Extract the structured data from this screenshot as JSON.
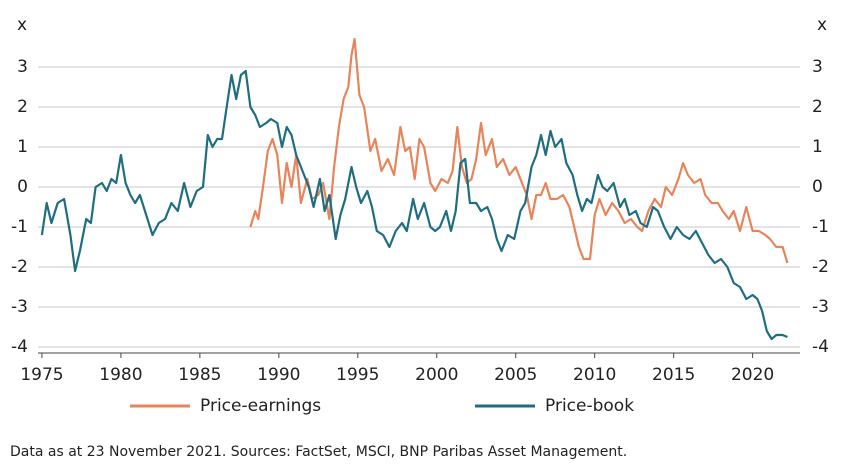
{
  "chart_data": {
    "type": "line",
    "ylabel": "x",
    "y2label": "x",
    "xlim": [
      1974.75,
      2023
    ],
    "xticks": [
      1975,
      1980,
      1985,
      1990,
      1995,
      2000,
      2005,
      2010,
      2015,
      2020
    ],
    "ylim": [
      -4.15,
      3.5
    ],
    "yticks": [
      -4,
      -3,
      -2,
      -1,
      0,
      1,
      2,
      3
    ],
    "y2lim": [
      -4.15,
      3.5
    ],
    "y2ticks": [
      -4,
      -3,
      -2,
      -1,
      0,
      1,
      2,
      3
    ],
    "grid": true,
    "legend": "bottom",
    "series": [
      {
        "name": "Price-earnings",
        "color": "#e8845a",
        "x": [
          1988.2,
          1988.5,
          1988.7,
          1989.0,
          1989.3,
          1989.6,
          1989.9,
          1990.2,
          1990.5,
          1990.8,
          1991.1,
          1991.4,
          1991.8,
          1992.1,
          1992.5,
          1992.8,
          1993.2,
          1993.5,
          1993.8,
          1994.1,
          1994.4,
          1994.6,
          1994.8,
          1995.1,
          1995.4,
          1995.8,
          1996.1,
          1996.5,
          1996.9,
          1997.3,
          1997.7,
          1998.0,
          1998.3,
          1998.6,
          1998.9,
          1999.2,
          1999.6,
          1999.9,
          2000.3,
          2000.7,
          2001.0,
          2001.3,
          2001.6,
          2001.9,
          2002.2,
          2002.5,
          2002.8,
          2003.1,
          2003.5,
          2003.8,
          2004.2,
          2004.6,
          2005.0,
          2005.4,
          2005.7,
          2006.0,
          2006.3,
          2006.6,
          2006.9,
          2007.2,
          2007.6,
          2008.0,
          2008.4,
          2008.7,
          2009.0,
          2009.3,
          2009.7,
          2010.0,
          2010.3,
          2010.7,
          2011.1,
          2011.5,
          2011.9,
          2012.3,
          2012.7,
          2013.0,
          2013.4,
          2013.8,
          2014.2,
          2014.5,
          2014.9,
          2015.3,
          2015.6,
          2015.9,
          2016.3,
          2016.7,
          2017.0,
          2017.4,
          2017.8,
          2018.1,
          2018.5,
          2018.8,
          2019.2,
          2019.6,
          2020.0,
          2020.4,
          2020.8,
          2021.1,
          2021.5,
          2021.9,
          2022.2
        ],
        "values": [
          -1.0,
          -0.6,
          -0.8,
          0,
          0.9,
          1.2,
          0.8,
          -0.4,
          0.6,
          0,
          0.8,
          -0.4,
          0.2,
          -0.3,
          -0.2,
          0.1,
          -0.8,
          0.5,
          1.5,
          2.2,
          2.5,
          3.3,
          3.7,
          2.3,
          2.0,
          0.9,
          1.2,
          0.4,
          0.7,
          0.3,
          1.5,
          0.9,
          1.0,
          0.2,
          1.2,
          1.0,
          0.1,
          -0.1,
          0.2,
          0.1,
          0.4,
          1.5,
          0.5,
          0.1,
          0.2,
          0.7,
          1.6,
          0.8,
          1.2,
          0.5,
          0.7,
          0.3,
          0.5,
          0.1,
          -0.2,
          -0.8,
          -0.2,
          -0.2,
          0.1,
          -0.3,
          -0.3,
          -0.2,
          -0.5,
          -1.0,
          -1.5,
          -1.8,
          -1.8,
          -0.7,
          -0.3,
          -0.7,
          -0.4,
          -0.6,
          -0.9,
          -0.8,
          -1.0,
          -1.1,
          -0.6,
          -0.3,
          -0.5,
          0,
          -0.2,
          0.2,
          0.6,
          0.3,
          0.1,
          0.2,
          -0.2,
          -0.4,
          -0.4,
          -0.6,
          -0.8,
          -0.6,
          -1.1,
          -0.5,
          -1.1,
          -1.1,
          -1.2,
          -1.3,
          -1.5,
          -1.5,
          -1.9
        ]
      },
      {
        "name": "Price-book",
        "color": "#1f6e80",
        "x": [
          1975.0,
          1975.3,
          1975.6,
          1976.0,
          1976.4,
          1976.8,
          1977.1,
          1977.4,
          1977.8,
          1978.1,
          1978.4,
          1978.8,
          1979.1,
          1979.4,
          1979.7,
          1980.0,
          1980.3,
          1980.6,
          1980.9,
          1981.2,
          1981.6,
          1982.0,
          1982.4,
          1982.8,
          1983.2,
          1983.6,
          1984.0,
          1984.4,
          1984.8,
          1985.2,
          1985.5,
          1985.8,
          1986.1,
          1986.4,
          1986.7,
          1987.0,
          1987.3,
          1987.6,
          1987.9,
          1988.2,
          1988.5,
          1988.8,
          1989.2,
          1989.5,
          1989.9,
          1990.2,
          1990.5,
          1990.8,
          1991.1,
          1991.5,
          1991.9,
          1992.2,
          1992.6,
          1992.9,
          1993.2,
          1993.6,
          1993.9,
          1994.2,
          1994.6,
          1994.9,
          1995.2,
          1995.6,
          1995.9,
          1996.2,
          1996.6,
          1997.0,
          1997.4,
          1997.8,
          1998.1,
          1998.5,
          1998.8,
          1999.2,
          1999.6,
          1999.9,
          2000.2,
          2000.6,
          2000.9,
          2001.2,
          2001.5,
          2001.8,
          2002.1,
          2002.5,
          2002.8,
          2003.2,
          2003.5,
          2003.8,
          2004.1,
          2004.5,
          2004.9,
          2005.3,
          2005.6,
          2006.0,
          2006.3,
          2006.6,
          2006.9,
          2007.2,
          2007.5,
          2007.9,
          2008.2,
          2008.6,
          2008.9,
          2009.2,
          2009.5,
          2009.8,
          2010.2,
          2010.5,
          2010.8,
          2011.2,
          2011.6,
          2011.9,
          2012.2,
          2012.6,
          2012.9,
          2013.3,
          2013.7,
          2014.0,
          2014.4,
          2014.8,
          2015.2,
          2015.6,
          2016.0,
          2016.4,
          2016.8,
          2017.2,
          2017.6,
          2018.0,
          2018.4,
          2018.8,
          2019.2,
          2019.6,
          2020.0,
          2020.3,
          2020.6,
          2020.9,
          2021.2,
          2021.5,
          2021.9,
          2022.2
        ],
        "values": [
          -1.2,
          -0.4,
          -0.9,
          -0.4,
          -0.3,
          -1.2,
          -2.1,
          -1.6,
          -0.8,
          -0.9,
          0,
          0.1,
          -0.1,
          0.2,
          0.1,
          0.8,
          0.1,
          -0.2,
          -0.4,
          -0.2,
          -0.7,
          -1.2,
          -0.9,
          -0.8,
          -0.4,
          -0.6,
          0.1,
          -0.5,
          -0.1,
          0,
          1.3,
          1.0,
          1.2,
          1.2,
          2.0,
          2.8,
          2.2,
          2.8,
          2.9,
          2.0,
          1.8,
          1.5,
          1.6,
          1.7,
          1.6,
          1.0,
          1.5,
          1.3,
          0.8,
          0.4,
          0,
          -0.5,
          0.2,
          -0.6,
          -0.2,
          -1.3,
          -0.7,
          -0.3,
          0.5,
          0,
          -0.4,
          -0.1,
          -0.5,
          -1.1,
          -1.2,
          -1.5,
          -1.1,
          -0.9,
          -1.1,
          -0.3,
          -0.8,
          -0.4,
          -1.0,
          -1.1,
          -1.0,
          -0.6,
          -1.1,
          -0.6,
          0.6,
          0.7,
          -0.4,
          -0.4,
          -0.6,
          -0.5,
          -0.8,
          -1.3,
          -1.6,
          -1.2,
          -1.3,
          -0.6,
          -0.4,
          0.5,
          0.8,
          1.3,
          0.8,
          1.4,
          1.0,
          1.2,
          0.6,
          0.3,
          -0.2,
          -0.6,
          -0.3,
          -0.4,
          0.3,
          0,
          -0.1,
          0.1,
          -0.5,
          -0.3,
          -0.7,
          -0.6,
          -0.9,
          -1.0,
          -0.5,
          -0.6,
          -1.0,
          -1.3,
          -1.0,
          -1.2,
          -1.3,
          -1.1,
          -1.4,
          -1.7,
          -1.9,
          -1.8,
          -2.0,
          -2.4,
          -2.5,
          -2.8,
          -2.7,
          -2.8,
          -3.1,
          -3.6,
          -3.8,
          -3.7,
          -3.7,
          -3.75
        ]
      }
    ],
    "footnote": "Data as at 23 November 2021. Sources: FactSet, MSCI, BNP Paribas Asset Management."
  }
}
